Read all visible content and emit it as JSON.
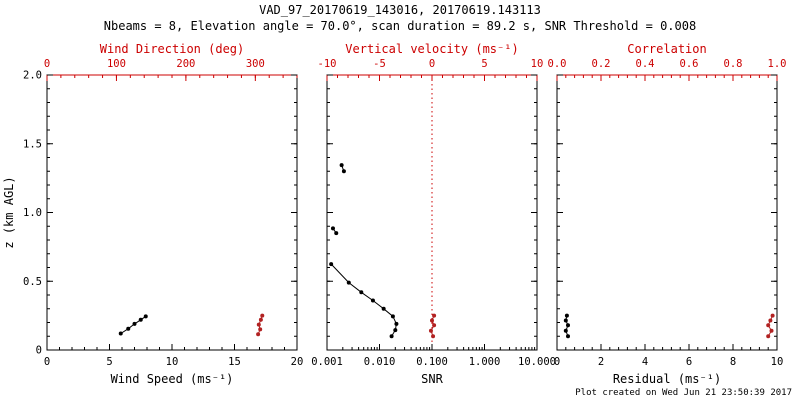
{
  "title": "VAD_97_20170619_143016, 20170619.143113",
  "subtitle": "Nbeams = 8, Elevation angle = 70.0°, scan duration = 89.2 s, SNR Threshold = 0.008",
  "footer": "Plot created on Wed Jun 21 23:50:39 2017",
  "colors": {
    "primary": "#000000",
    "secondary": "#cc0000",
    "background": "#ffffff"
  },
  "chart_data": [
    {
      "type": "scatter",
      "name": "wind-panel",
      "ylabel": "z (km AGL)",
      "ylim": [
        0,
        2
      ],
      "yticks": [
        0,
        0.5,
        1,
        1.5,
        2
      ],
      "ytick_labels": [
        "0",
        "0.5",
        "1.0",
        "1.5",
        "2.0"
      ],
      "bottom_axis": {
        "label": "Wind Speed (ms⁻¹)",
        "range": [
          0,
          20
        ],
        "ticks": [
          0,
          5,
          10,
          15,
          20
        ],
        "tick_labels": [
          "0",
          "5",
          "10",
          "15",
          "20"
        ],
        "scale": "linear",
        "color": "#000000"
      },
      "top_axis": {
        "label": "Wind Direction (deg)",
        "range": [
          0,
          360
        ],
        "ticks": [
          0,
          100,
          200,
          300
        ],
        "tick_labels": [
          "0",
          "100",
          "200",
          "300"
        ],
        "scale": "linear",
        "color": "#cc0000"
      },
      "series": [
        {
          "name": "wind-speed",
          "axis": "bottom",
          "color": "#000000",
          "points": [
            [
              5.9,
              0.12
            ],
            [
              6.5,
              0.155
            ],
            [
              7.0,
              0.19
            ],
            [
              7.5,
              0.22
            ],
            [
              7.9,
              0.245
            ]
          ]
        },
        {
          "name": "wind-direction",
          "axis": "top",
          "color": "#b22222",
          "points": [
            [
              304,
              0.115
            ],
            [
              307,
              0.15
            ],
            [
              305,
              0.185
            ],
            [
              308,
              0.22
            ],
            [
              310,
              0.25
            ]
          ]
        }
      ]
    },
    {
      "type": "scatter",
      "name": "snr-panel",
      "ylim": [
        0,
        2
      ],
      "yticks": [
        0,
        0.5,
        1,
        1.5,
        2
      ],
      "bottom_axis": {
        "label": "SNR",
        "range": [
          0.001,
          10
        ],
        "ticks": [
          0.001,
          0.01,
          0.1,
          1,
          10
        ],
        "tick_labels": [
          "0.001",
          "0.010",
          "0.100",
          "1.000",
          "10.000"
        ],
        "scale": "log",
        "color": "#000000"
      },
      "top_axis": {
        "label": "Vertical velocity (ms⁻¹)",
        "range": [
          -10,
          10
        ],
        "ticks": [
          -10,
          -5,
          0,
          5,
          10
        ],
        "tick_labels": [
          "-10",
          "-5",
          "0",
          "5",
          "10"
        ],
        "scale": "linear",
        "color": "#cc0000"
      },
      "reference_line": {
        "axis": "top",
        "value": 0,
        "color": "#cc0000",
        "style": "dotted"
      },
      "series": [
        {
          "name": "snr-upper",
          "axis": "bottom",
          "color": "#000000",
          "points": [
            [
              0.0019,
              1.345
            ],
            [
              0.0021,
              1.3
            ]
          ]
        },
        {
          "name": "snr-mid",
          "axis": "bottom",
          "color": "#000000",
          "points": [
            [
              0.0013,
              0.885
            ],
            [
              0.0015,
              0.85
            ]
          ]
        },
        {
          "name": "snr-profile",
          "axis": "bottom",
          "color": "#000000",
          "points": [
            [
              0.0012,
              0.625
            ],
            [
              0.0026,
              0.49
            ],
            [
              0.0045,
              0.42
            ],
            [
              0.0075,
              0.36
            ],
            [
              0.012,
              0.3
            ],
            [
              0.018,
              0.245
            ],
            [
              0.021,
              0.19
            ],
            [
              0.02,
              0.145
            ],
            [
              0.017,
              0.1
            ]
          ]
        },
        {
          "name": "vertical-velocity",
          "axis": "top",
          "color": "#b22222",
          "points": [
            [
              0.1,
              0.1
            ],
            [
              -0.1,
              0.14
            ],
            [
              0.2,
              0.18
            ],
            [
              0.0,
              0.215
            ],
            [
              0.2,
              0.25
            ]
          ]
        }
      ]
    },
    {
      "type": "scatter",
      "name": "residual-panel",
      "ylim": [
        0,
        2
      ],
      "yticks": [
        0,
        0.5,
        1,
        1.5,
        2
      ],
      "bottom_axis": {
        "label": "Residual (ms⁻¹)",
        "range": [
          0,
          10
        ],
        "ticks": [
          0,
          2,
          4,
          6,
          8,
          10
        ],
        "tick_labels": [
          "0",
          "2",
          "4",
          "6",
          "8",
          "10"
        ],
        "scale": "linear",
        "color": "#000000"
      },
      "top_axis": {
        "label": "Correlation",
        "range": [
          0,
          1
        ],
        "ticks": [
          0,
          0.2,
          0.4,
          0.6,
          0.8,
          1
        ],
        "tick_labels": [
          "0.0",
          "0.2",
          "0.4",
          "0.6",
          "0.8",
          "1.0"
        ],
        "scale": "linear",
        "color": "#cc0000"
      },
      "series": [
        {
          "name": "residual",
          "axis": "bottom",
          "color": "#000000",
          "points": [
            [
              0.5,
              0.1
            ],
            [
              0.4,
              0.14
            ],
            [
              0.5,
              0.18
            ],
            [
              0.4,
              0.215
            ],
            [
              0.45,
              0.25
            ]
          ]
        },
        {
          "name": "correlation",
          "axis": "top",
          "color": "#b22222",
          "points": [
            [
              0.96,
              0.1
            ],
            [
              0.975,
              0.14
            ],
            [
              0.96,
              0.18
            ],
            [
              0.97,
              0.215
            ],
            [
              0.98,
              0.25
            ]
          ]
        }
      ]
    }
  ]
}
